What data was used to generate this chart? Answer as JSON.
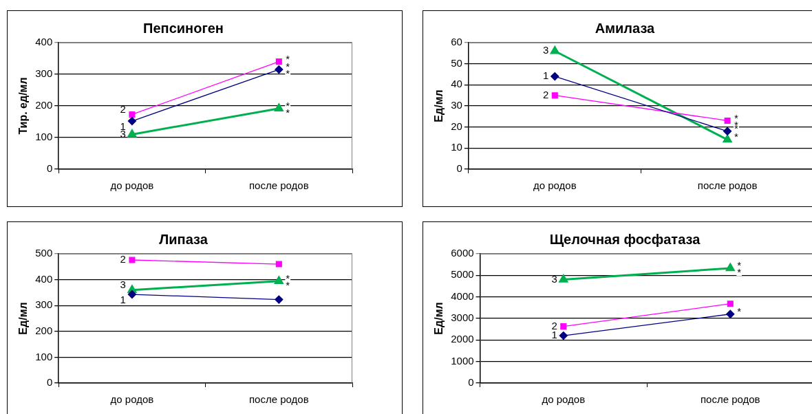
{
  "chart_data": [
    {
      "type": "line",
      "title": "Пепсиноген",
      "ylabel": "Тир. ед/мл",
      "categories": [
        "до родов",
        "после родов"
      ],
      "ylim": [
        0,
        400
      ],
      "yticks": [
        0,
        100,
        200,
        300,
        400
      ],
      "grid": "y",
      "legend": false,
      "series": [
        {
          "name": "1",
          "color": "#000080",
          "marker": "diamond",
          "values": [
            152,
            315
          ]
        },
        {
          "name": "2",
          "color": "#ff00ff",
          "marker": "square",
          "values": [
            173,
            340
          ]
        },
        {
          "name": "3",
          "color": "#00b050",
          "marker": "triangle",
          "values": [
            110,
            192
          ]
        }
      ],
      "annotations": [
        {
          "text": "*",
          "x": "после родов",
          "y": 340
        },
        {
          "text": "*",
          "x": "после родов",
          "y": 315
        },
        {
          "text": "*",
          "x": "после родов",
          "y": 315
        },
        {
          "text": "*",
          "x": "после родов",
          "y": 192
        },
        {
          "text": "*",
          "x": "после родов",
          "y": 192
        }
      ]
    },
    {
      "type": "line",
      "title": "Амилаза",
      "ylabel": "Ед/мл",
      "categories": [
        "до родов",
        "после родов"
      ],
      "ylim": [
        0,
        60
      ],
      "yticks": [
        0,
        10,
        20,
        30,
        40,
        50,
        60
      ],
      "grid": "y",
      "legend": false,
      "series": [
        {
          "name": "1",
          "color": "#000080",
          "marker": "diamond",
          "values": [
            44,
            18
          ]
        },
        {
          "name": "2",
          "color": "#ff00ff",
          "marker": "square",
          "values": [
            35,
            23
          ]
        },
        {
          "name": "3",
          "color": "#00b050",
          "marker": "triangle",
          "values": [
            56,
            14
          ]
        }
      ],
      "annotations": [
        {
          "text": "*",
          "x": "после родов",
          "y": 23
        },
        {
          "text": "*",
          "x": "после родов",
          "y": 23
        },
        {
          "text": "*",
          "x": "после родов",
          "y": 18
        },
        {
          "text": "*",
          "x": "после родов",
          "y": 14
        }
      ]
    },
    {
      "type": "line",
      "title": "Липаза",
      "ylabel": "Ед/мл",
      "categories": [
        "до родов",
        "после родов"
      ],
      "ylim": [
        0,
        500
      ],
      "yticks": [
        0,
        100,
        200,
        300,
        400,
        500
      ],
      "grid": "y",
      "legend": false,
      "series": [
        {
          "name": "1",
          "color": "#000080",
          "marker": "diamond",
          "values": [
            343,
            323
          ]
        },
        {
          "name": "2",
          "color": "#ff00ff",
          "marker": "square",
          "values": [
            476,
            460
          ]
        },
        {
          "name": "3",
          "color": "#00b050",
          "marker": "triangle",
          "values": [
            360,
            394
          ]
        }
      ],
      "annotations": [
        {
          "text": "*",
          "x": "после родов",
          "y": 394
        },
        {
          "text": "*",
          "x": "после родов",
          "y": 394
        }
      ]
    },
    {
      "type": "line",
      "title": "Щелочная фосфатаза",
      "ylabel": "Ед/мл",
      "categories": [
        "до родов",
        "после родов"
      ],
      "ylim": [
        0,
        6000
      ],
      "yticks": [
        0,
        1000,
        2000,
        3000,
        4000,
        5000,
        6000
      ],
      "grid": "y",
      "legend": false,
      "series": [
        {
          "name": "1",
          "color": "#000080",
          "marker": "diamond",
          "values": [
            2200,
            3200
          ]
        },
        {
          "name": "2",
          "color": "#ff00ff",
          "marker": "square",
          "values": [
            2630,
            3680
          ]
        },
        {
          "name": "3",
          "color": "#00b050",
          "marker": "triangle",
          "values": [
            4800,
            5330
          ]
        }
      ],
      "annotations": [
        {
          "text": "*",
          "x": "после родов",
          "y": 5330
        },
        {
          "text": "*",
          "x": "после родов",
          "y": 5330
        },
        {
          "text": "*",
          "x": "после родов",
          "y": 3200
        }
      ]
    }
  ]
}
